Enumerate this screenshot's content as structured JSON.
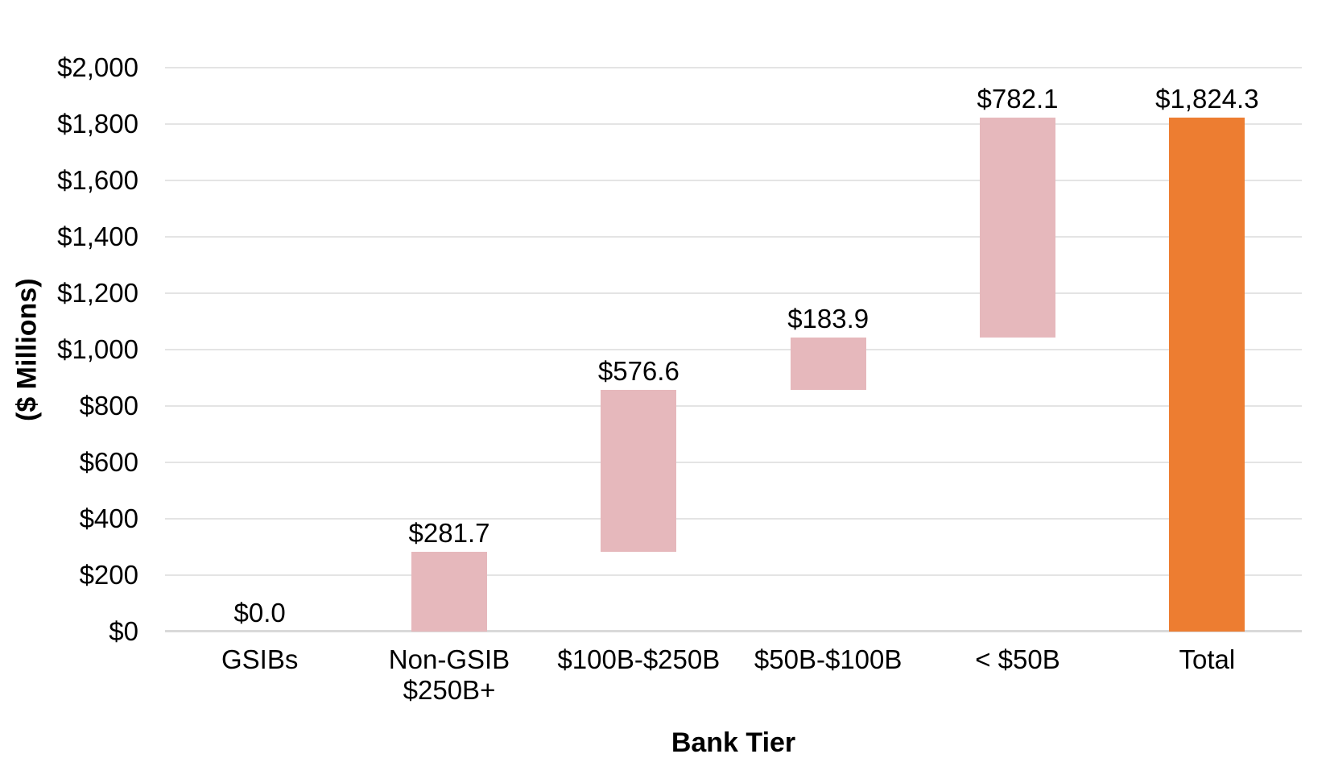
{
  "chart_data": {
    "type": "bar",
    "subtype": "waterfall",
    "title": "",
    "xlabel": "Bank Tier",
    "ylabel": "($ Millions)",
    "categories": [
      "GSIBs",
      "Non-GSIB\n$250B+",
      "$100B-$250B",
      "$50B-$100B",
      "< $50B",
      "Total"
    ],
    "series": [
      {
        "name": "Amount",
        "values": [
          0.0,
          281.7,
          576.6,
          183.9,
          782.1,
          1824.3
        ],
        "starts": [
          0.0,
          0.0,
          281.7,
          858.3,
          1042.2,
          0.0
        ],
        "ends": [
          0.0,
          281.7,
          858.3,
          1042.2,
          1824.3,
          1824.3
        ],
        "labels": [
          "$0.0",
          "$281.7",
          "$576.6",
          "$183.9",
          "$782.1",
          "$1,824.3"
        ],
        "is_total": [
          false,
          false,
          false,
          false,
          false,
          true
        ]
      }
    ],
    "ylim": [
      0,
      2000
    ],
    "yticks": {
      "step": 200,
      "labels": [
        "$0",
        "$200",
        "$400",
        "$600",
        "$800",
        "$1,000",
        "$1,200",
        "$1,400",
        "$1,600",
        "$1,800",
        "$2,000"
      ]
    },
    "grid": true,
    "legend": "none",
    "colors": {
      "segment_fill": "#E6B8BC",
      "total_fill": "#ED7D31",
      "gridline": "#E4E4E4",
      "axis_line": "#D9D9D9",
      "text": "#000000",
      "background": "#FFFFFF"
    }
  }
}
